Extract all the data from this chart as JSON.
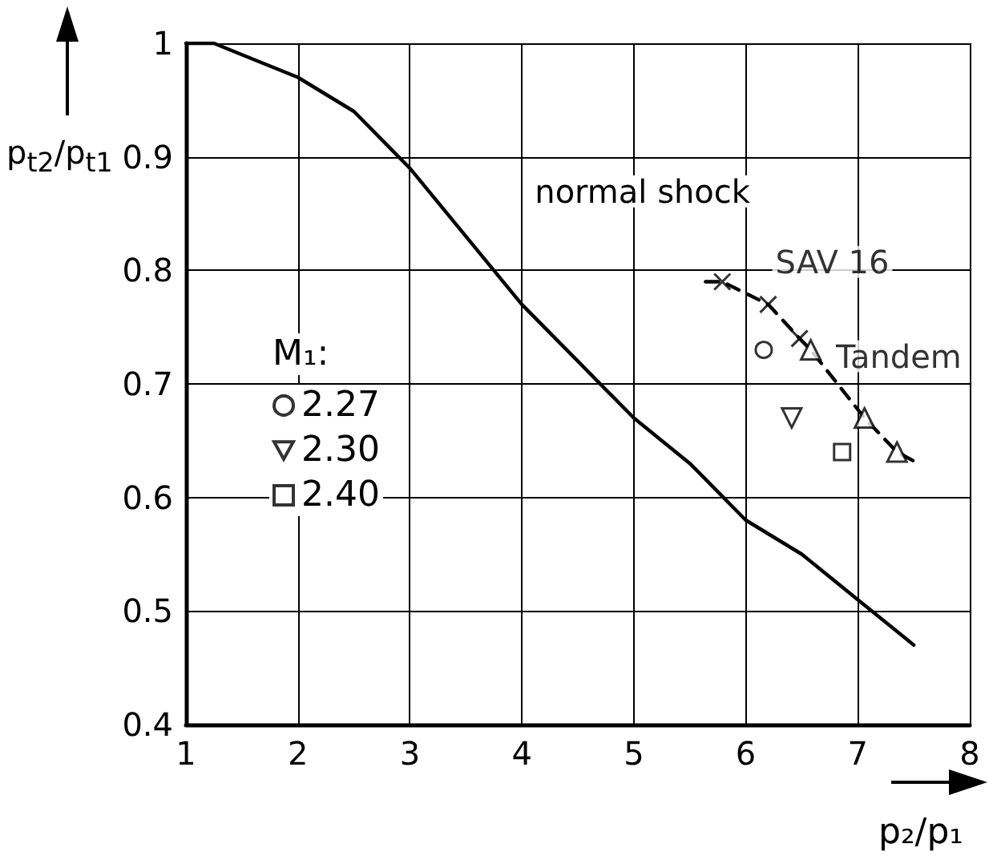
{
  "chart_data": {
    "type": "scatter",
    "xlabel": "p₂/p₁",
    "ylabel": "p$_{t2}$/p$_{t1}$",
    "legend_title": "M₁:",
    "xlim": [
      1,
      8
    ],
    "xticks": [
      1,
      2,
      3,
      4,
      5,
      6,
      7,
      8
    ],
    "ylim": [
      0.4,
      1.0
    ],
    "yticks": [
      0.4,
      0.5,
      0.6,
      0.7,
      0.8,
      0.9,
      1.0
    ],
    "grid": true,
    "legend": "left",
    "series": [
      {
        "name": "normal shock",
        "type": "line",
        "color": "#000000",
        "marker": "none",
        "line_style": "solid",
        "x": [
          1,
          1.25,
          1.5,
          2,
          2.5,
          3,
          3.5,
          4,
          4.5,
          5,
          5.5,
          6,
          6.5,
          7,
          7.5
        ],
        "values": [
          1.0,
          1.0,
          0.99,
          0.97,
          0.94,
          0.89,
          0.83,
          0.77,
          0.72,
          0.67,
          0.63,
          0.58,
          0.55,
          0.51,
          0.47
        ]
      },
      {
        "type": "line",
        "color": "#000000",
        "marker": "none",
        "line_style": "dashed",
        "x": [
          5.64,
          5.79,
          6.2,
          6.48,
          6.58,
          7.06,
          7.35,
          7.54
        ],
        "values": [
          0.79,
          0.79,
          0.77,
          0.74,
          0.73,
          0.67,
          0.64,
          0.63
        ]
      },
      {
        "name": "SAV 16",
        "type": "scatter",
        "color": "#000000",
        "marker": "cross",
        "x": [
          5.79,
          6.2,
          6.48
        ],
        "values": [
          0.79,
          0.77,
          0.74
        ]
      },
      {
        "name": "Tandem",
        "type": "scatter",
        "color": "#000000",
        "marker": "triangle",
        "x": [
          6.58,
          7.06,
          7.35
        ],
        "values": [
          0.73,
          0.67,
          0.64
        ]
      },
      {
        "name": "2.27",
        "color": "#000000",
        "marker": "circle",
        "x": [
          6.16
        ],
        "values": [
          0.73
        ]
      },
      {
        "name": "2.30",
        "color": "#000000",
        "marker": "triangle-down",
        "x": [
          6.41
        ],
        "values": [
          0.67
        ]
      },
      {
        "name": "2.40",
        "color": "#000000",
        "marker": "square",
        "x": [
          6.86
        ],
        "values": [
          0.64
        ]
      }
    ]
  }
}
